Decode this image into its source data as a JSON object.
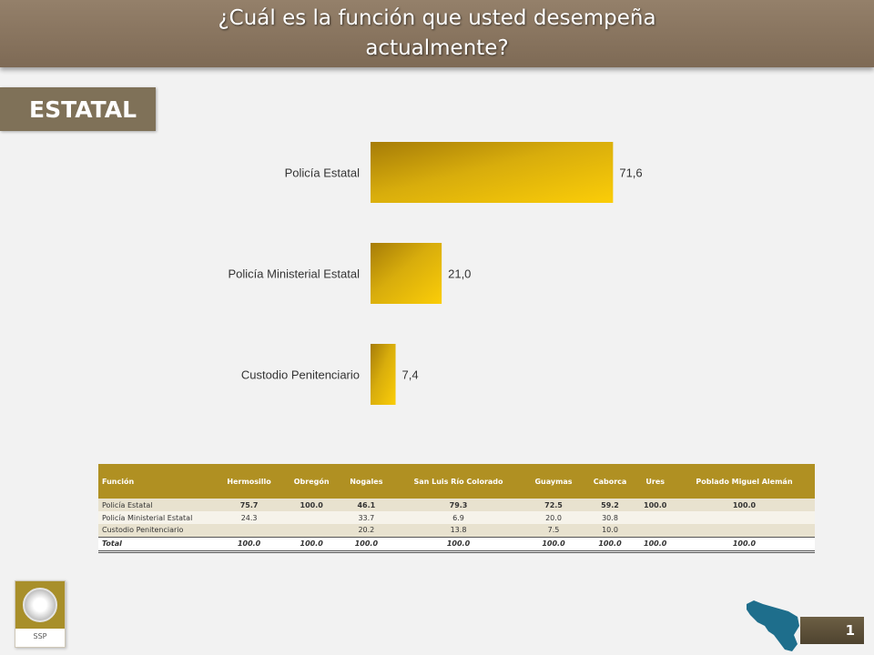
{
  "header": {
    "title": "¿Cuál es la función que usted desempeña actualmente?"
  },
  "section_tag": "ESTATAL",
  "chart_data": {
    "type": "bar",
    "orientation": "horizontal",
    "categories": [
      "Policía Estatal",
      "Policía Ministerial Estatal",
      "Custodio Penitenciario"
    ],
    "values": [
      71.6,
      21.0,
      7.4
    ],
    "value_labels": [
      "71,6",
      "21,0",
      "7,4"
    ],
    "title": "",
    "xlabel": "",
    "ylabel": "",
    "xlim": [
      0,
      100
    ],
    "grid": false,
    "legend": "none",
    "bar_color": "#d4a90a"
  },
  "table": {
    "headers": [
      "Función",
      "Hermosillo",
      "Obregón",
      "Nogales",
      "San Luis Río Colorado",
      "Guaymas",
      "Caborca",
      "Ures",
      "Poblado Miguel Alemán"
    ],
    "rows": [
      [
        "Policía Estatal",
        "75.7",
        "100.0",
        "46.1",
        "79.3",
        "72.5",
        "59.2",
        "100.0",
        "100.0"
      ],
      [
        "Policía Ministerial Estatal",
        "24.3",
        "",
        "33.7",
        "6.9",
        "20.0",
        "30.8",
        "",
        ""
      ],
      [
        "Custodio Penitenciario",
        "",
        "",
        "20.2",
        "13.8",
        "7.5",
        "10.0",
        "",
        ""
      ]
    ],
    "total_row": [
      "Total",
      "100.0",
      "100.0",
      "100.0",
      "100.0",
      "100.0",
      "100.0",
      "100.0",
      "100.0"
    ]
  },
  "logo": {
    "text": "SSP",
    "icon": "ssp-seal-icon"
  },
  "map_icon": "sonora-map-icon",
  "page_number": "1",
  "colors": {
    "header": "#8a7560",
    "section_tag": "#7f7158",
    "table_header": "#b09022",
    "map": "#1e6e8c"
  }
}
